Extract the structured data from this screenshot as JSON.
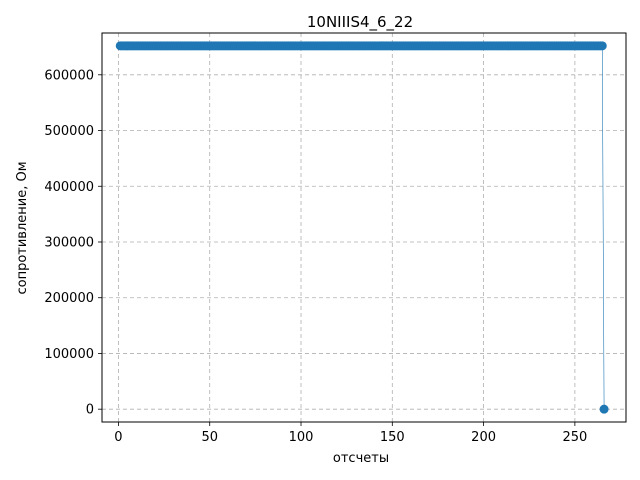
{
  "chart_data": {
    "type": "line",
    "title": "10NIIIS4_6_22",
    "xlabel": "отсчеты",
    "ylabel": "сопротивление, Ом",
    "xlim": [
      -9,
      278
    ],
    "ylim": [
      -23000,
      675000
    ],
    "xticks": [
      0,
      50,
      100,
      150,
      200,
      250
    ],
    "yticks": [
      0,
      100000,
      200000,
      300000,
      400000,
      500000,
      600000
    ],
    "grid": true,
    "series": [
      {
        "color": "#1f77b4",
        "marker": "circle",
        "constant_segment": {
          "x_start": 1,
          "x_end": 265,
          "y": 652000
        },
        "final_point": {
          "x": 266,
          "y": 0
        }
      }
    ]
  }
}
